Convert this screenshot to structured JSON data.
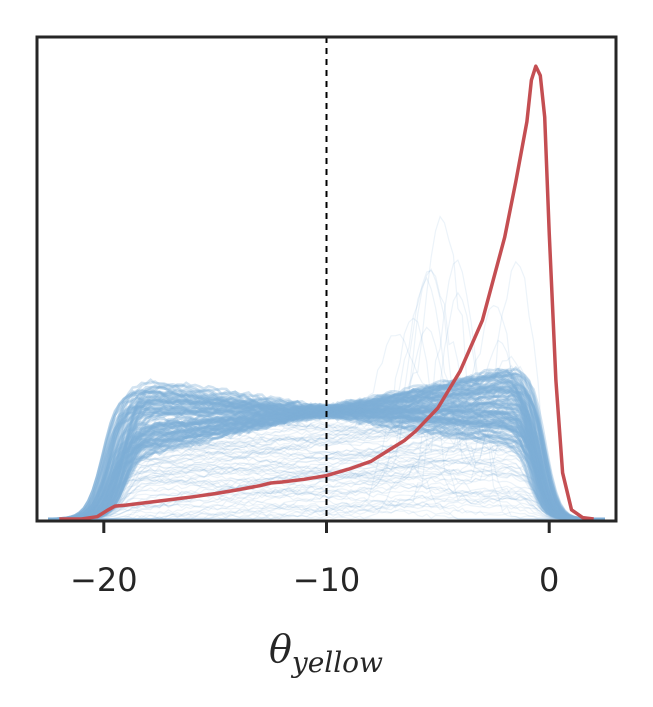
{
  "chart_data": {
    "type": "line",
    "title": "",
    "xlabel_symbol": "θ",
    "xlabel_subscript": "yellow",
    "ylabel": "",
    "xlim": [
      -23,
      3
    ],
    "ylim": [
      0,
      1.0
    ],
    "xticks": [
      -20,
      -10,
      0
    ],
    "xtick_labels": [
      "−20",
      "−10",
      "0"
    ],
    "yticks_shown": false,
    "grid": false,
    "reference_line": {
      "x": -10,
      "style": "dashed",
      "color": "#000000"
    },
    "colors": {
      "ensemble": "#7fb0d6",
      "mean": "#c44e52",
      "frame": "#262626"
    },
    "ensemble": {
      "description_level": "many faint posterior-predictive density curves",
      "band_plateau_x": [
        -19.5,
        -0.5
      ],
      "band_plateau_y": [
        0.22,
        0.245
      ],
      "band_low_y": [
        0.0,
        0.22
      ]
    },
    "series": [
      {
        "x": [
          -22,
          -21,
          -20.3,
          -19.8,
          -19.5,
          -19,
          -18,
          -17,
          -16,
          -15,
          -14,
          -13,
          -12.5,
          -12,
          -11,
          -10,
          -9,
          -8,
          -7,
          -6.5,
          -6,
          -5,
          -4,
          -3,
          -2,
          -1.5,
          -1.0,
          -0.8,
          -0.6,
          -0.4,
          -0.2,
          0,
          0.3,
          0.6,
          1.0,
          1.5,
          2
        ],
        "y": [
          0.0,
          0.0,
          0.005,
          0.02,
          0.028,
          0.03,
          0.036,
          0.042,
          0.048,
          0.055,
          0.063,
          0.072,
          0.078,
          0.08,
          0.086,
          0.094,
          0.108,
          0.125,
          0.155,
          0.17,
          0.19,
          0.24,
          0.32,
          0.43,
          0.61,
          0.73,
          0.86,
          0.95,
          0.98,
          0.96,
          0.87,
          0.62,
          0.3,
          0.1,
          0.02,
          0.003,
          0.0
        ]
      }
    ]
  }
}
